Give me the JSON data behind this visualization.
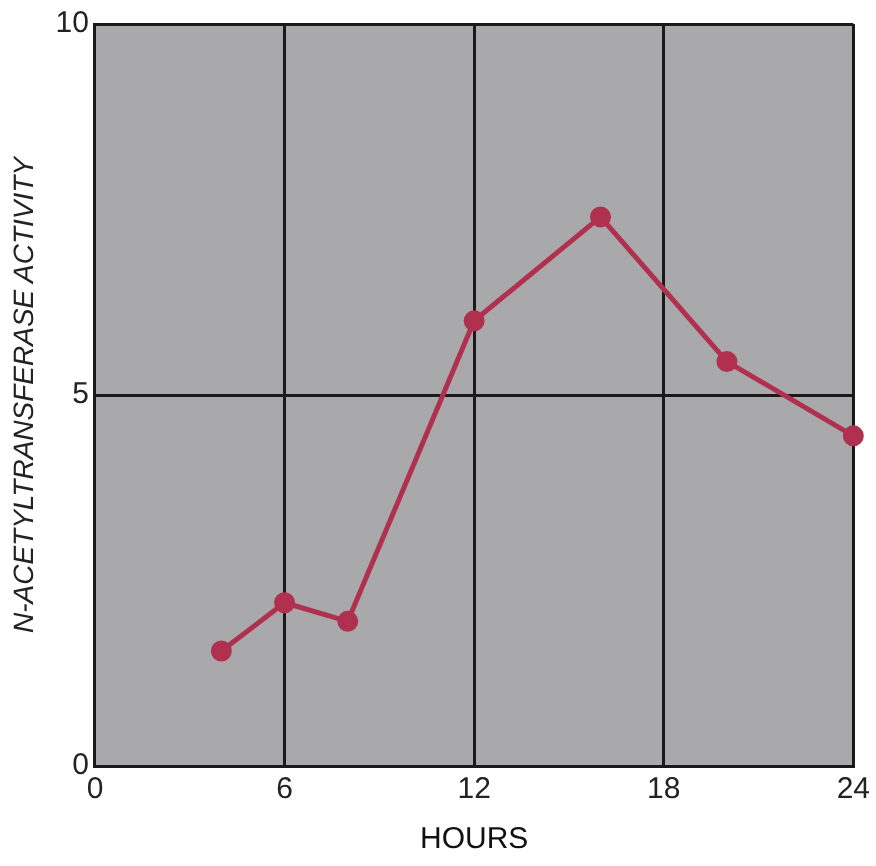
{
  "chart_data": {
    "type": "line",
    "xlabel": "HOURS",
    "ylabel": "N-ACETYLTRANSFERASE ACTIVITY",
    "x": [
      4,
      6,
      8,
      12,
      16,
      20,
      24
    ],
    "series": [
      {
        "color": "#b0304f",
        "values": [
          1.55,
          2.2,
          1.95,
          6.0,
          7.4,
          5.45,
          4.45
        ]
      }
    ],
    "xlim": [
      0,
      24
    ],
    "xticks": [
      0,
      6,
      12,
      18,
      24
    ],
    "ylim": [
      0,
      10
    ],
    "yticks": [
      0,
      5,
      10
    ],
    "grid": true,
    "legend": false,
    "marker": "circle",
    "line_style": "solid"
  }
}
